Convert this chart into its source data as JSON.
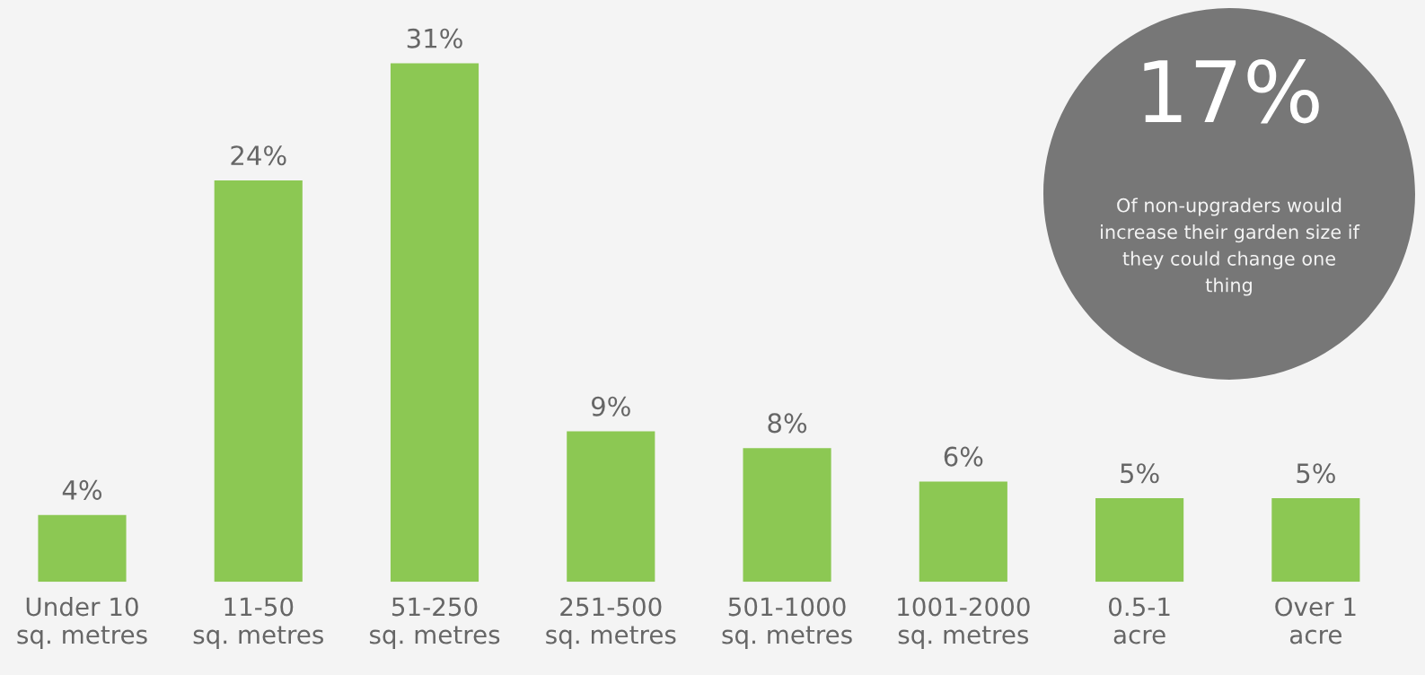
{
  "chart_data": {
    "type": "bar",
    "categories": [
      "Under 10\nsq. metres",
      "11-50\nsq. metres",
      "51-250\nsq. metres",
      "251-500\nsq. metres",
      "501-1000\nsq. metres",
      "1001-2000\nsq. metres",
      "0.5-1\nacre",
      "Over 1\nacre"
    ],
    "values": [
      4,
      24,
      31,
      9,
      8,
      6,
      5,
      5
    ],
    "value_labels": [
      "4%",
      "24%",
      "31%",
      "9%",
      "8%",
      "6%",
      "5%",
      "5%"
    ],
    "color": "#8cc853",
    "annotations": [
      "17%",
      "Of non-upgraders would\nincrease their garden size if\nthey could change one\nthing"
    ]
  }
}
